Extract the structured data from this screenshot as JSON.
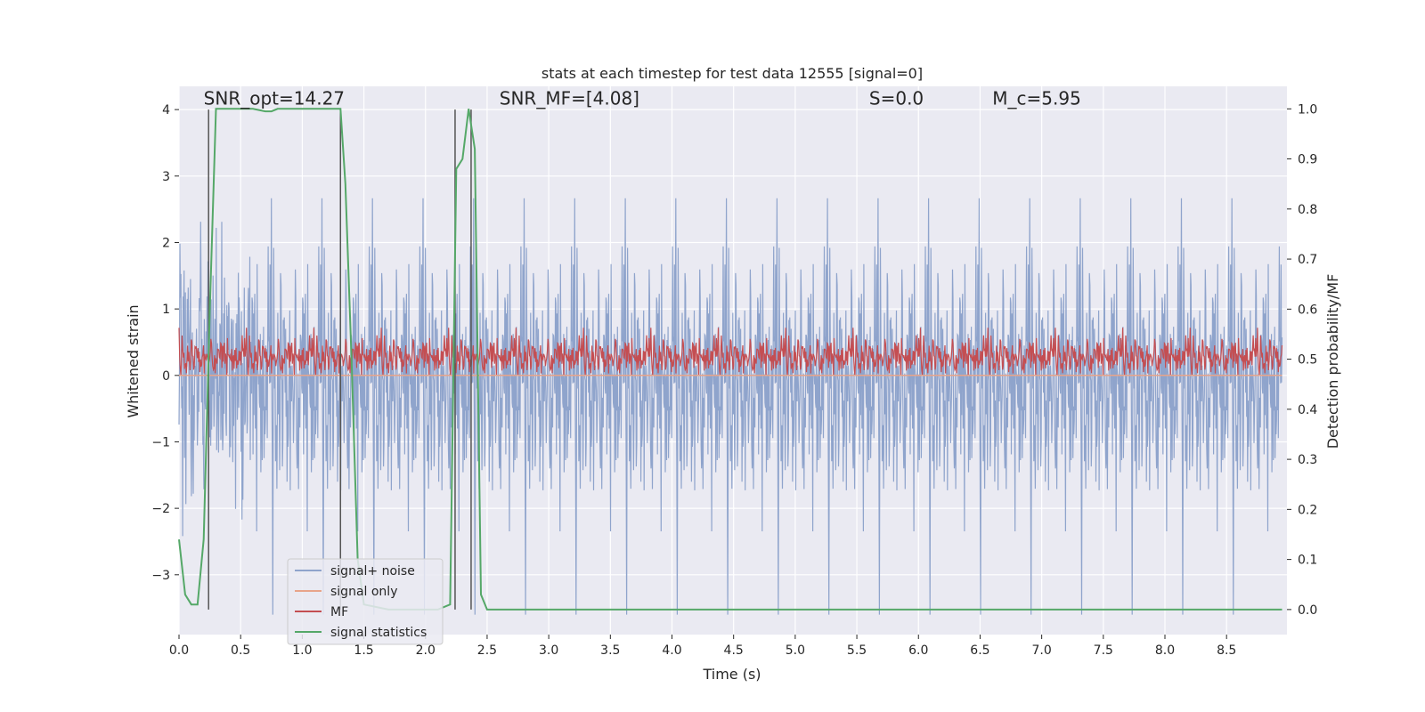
{
  "chart_data": {
    "type": "line",
    "title": "stats at each timestep for test data 12555 [signal=0]",
    "xlabel": "Time (s)",
    "ylabel_left": "Whitened strain",
    "ylabel_right": "Detection probability/MF",
    "xlim": [
      0.0,
      8.99
    ],
    "ylim_left": [
      -3.9,
      4.35
    ],
    "ylim_right": [
      -0.05,
      1.045
    ],
    "x_ticks": [
      "0.0",
      "0.5",
      "1.0",
      "1.5",
      "2.0",
      "2.5",
      "3.0",
      "3.5",
      "4.0",
      "4.5",
      "5.0",
      "5.5",
      "6.0",
      "6.5",
      "7.0",
      "7.5",
      "8.0",
      "8.5"
    ],
    "x_tick_values": [
      0.0,
      0.5,
      1.0,
      1.5,
      2.0,
      2.5,
      3.0,
      3.5,
      4.0,
      4.5,
      5.0,
      5.5,
      6.0,
      6.5,
      7.0,
      7.5,
      8.0,
      8.5
    ],
    "y_ticks_left": [
      "−3",
      "−2",
      "−1",
      "0",
      "1",
      "2",
      "3",
      "4"
    ],
    "y_tick_values_left": [
      -3,
      -2,
      -1,
      0,
      1,
      2,
      3,
      4
    ],
    "y_ticks_right": [
      "0.0",
      "0.1",
      "0.2",
      "0.3",
      "0.4",
      "0.5",
      "0.6",
      "0.7",
      "0.8",
      "0.9",
      "1.0"
    ],
    "y_tick_values_right": [
      0.0,
      0.1,
      0.2,
      0.3,
      0.4,
      0.5,
      0.6,
      0.7,
      0.8,
      0.9,
      1.0
    ],
    "grid": true,
    "legend_position": "lower-left",
    "annotations": [
      {
        "text": "SNR_opt=14.27",
        "x": 0.2,
        "y": 4.05
      },
      {
        "text": "SNR_MF=[4.08]",
        "x": 2.6,
        "y": 4.05
      },
      {
        "text": "S=0.0",
        "x": 5.6,
        "y": 4.05
      },
      {
        "text": "M_c=5.95",
        "x": 6.6,
        "y": 4.05
      }
    ],
    "vlines_x": [
      0.24,
      1.31,
      2.24,
      2.37
    ],
    "series": [
      {
        "name": "signal+ noise",
        "color": "#8fa4cc",
        "axis": "left",
        "kind": "noise",
        "amplitude_range": [
          -3.6,
          4.0
        ],
        "typical_peak": 2.6
      },
      {
        "name": "signal only",
        "color": "#e8a48a",
        "axis": "left",
        "kind": "flat",
        "value": 0.0
      },
      {
        "name": "MF",
        "color": "#c44e52",
        "axis": "left",
        "kind": "band",
        "range": [
          0.0,
          1.0
        ],
        "typical_range": [
          0.05,
          0.55
        ]
      },
      {
        "name": "signal statistics",
        "color": "#55a868",
        "axis": "right",
        "x": [
          0.0,
          0.05,
          0.1,
          0.15,
          0.2,
          0.25,
          0.3,
          0.4,
          0.5,
          0.6,
          0.7,
          0.75,
          0.8,
          0.9,
          1.0,
          1.1,
          1.2,
          1.31,
          1.35,
          1.4,
          1.45,
          1.5,
          1.7,
          1.9,
          2.1,
          2.2,
          2.25,
          2.3,
          2.35,
          2.4,
          2.45,
          2.5,
          2.6,
          3.0,
          4.0,
          5.0,
          6.0,
          7.0,
          8.0,
          8.95
        ],
        "y": [
          0.14,
          0.03,
          0.01,
          0.01,
          0.14,
          0.6,
          1.0,
          1.0,
          1.0,
          1.0,
          0.995,
          0.995,
          1.0,
          1.0,
          1.0,
          1.0,
          1.0,
          1.0,
          0.85,
          0.5,
          0.1,
          0.01,
          0.0,
          0.0,
          0.0,
          0.01,
          0.88,
          0.9,
          1.0,
          0.92,
          0.03,
          0.0,
          0.0,
          0.0,
          0.0,
          0.0,
          0.0,
          0.0,
          0.0,
          0.0
        ]
      }
    ]
  }
}
